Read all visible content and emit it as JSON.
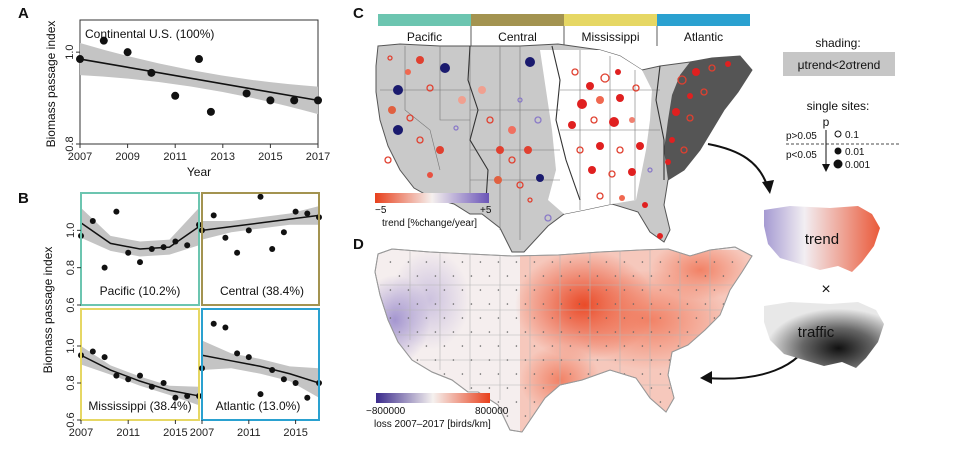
{
  "panels": {
    "a": "A",
    "b": "B",
    "c": "C",
    "d": "D"
  },
  "chart_data": [
    {
      "id": "A",
      "type": "scatter",
      "annotation": "Continental U.S. (100%)",
      "xlabel": "Year",
      "ylabel": "Biomass passage index",
      "x_ticks": [
        "2007",
        "2009",
        "2011",
        "2013",
        "2015",
        "2017"
      ],
      "y_ticks": [
        "0.8",
        "1.0"
      ],
      "xlim": [
        2007,
        2017
      ],
      "ylim": [
        0.8,
        1.07
      ],
      "x": [
        2007,
        2008,
        2009,
        2010,
        2011,
        2012,
        2012.5,
        2014,
        2015,
        2016,
        2017
      ],
      "y": [
        0.985,
        1.025,
        1.0,
        0.955,
        0.905,
        0.985,
        0.87,
        0.91,
        0.895,
        0.895,
        0.895
      ],
      "trend": [
        0.985,
        0.895
      ],
      "band": [
        0.035,
        0.015,
        0.03
      ]
    },
    {
      "id": "B",
      "type": "scatter",
      "ylabel": "Biomass passage index",
      "x_ticks": [
        "2007",
        "2011",
        "2015"
      ],
      "y_ticks": [
        "0.6",
        "0.8",
        "1.0"
      ],
      "xlim": [
        2007,
        2017
      ],
      "ylim": [
        0.6,
        1.2
      ],
      "series": [
        {
          "name": "Pacific (10.2%)",
          "color": "#6cc5b0",
          "x": [
            2007,
            2008,
            2009,
            2010,
            2011,
            2012,
            2013,
            2014,
            2015,
            2016,
            2017
          ],
          "y": [
            0.97,
            1.05,
            0.8,
            1.1,
            0.88,
            0.83,
            0.9,
            0.91,
            0.94,
            0.92,
            1.03
          ],
          "curve": [
            1.04,
            0.93,
            0.9,
            0.91,
            1.02
          ],
          "band": [
            0.08,
            0.04,
            0.1
          ]
        },
        {
          "name": "Central (38.4%)",
          "color": "#a39350",
          "x": [
            2007,
            2008,
            2009,
            2010,
            2011,
            2012,
            2013,
            2014,
            2015,
            2016,
            2017
          ],
          "y": [
            1.0,
            1.08,
            0.96,
            0.88,
            1.0,
            1.18,
            0.9,
            0.99,
            1.1,
            1.09,
            1.07
          ],
          "curve": [
            1.0,
            1.02,
            1.04,
            1.06,
            1.08
          ],
          "band": [
            0.05,
            0.03,
            0.05
          ]
        },
        {
          "name": "Mississippi (38.4%)",
          "color": "#e6d764",
          "x": [
            2007,
            2008,
            2009,
            2010,
            2011,
            2012,
            2013,
            2014,
            2015,
            2016,
            2017
          ],
          "y": [
            0.95,
            0.97,
            0.94,
            0.84,
            0.82,
            0.84,
            0.78,
            0.8,
            0.72,
            0.73,
            0.73
          ],
          "curve": [
            0.95,
            0.87,
            0.81,
            0.76,
            0.73
          ],
          "band": [
            0.05,
            0.025,
            0.05
          ]
        },
        {
          "name": "Atlantic (13.0%)",
          "color": "#2aa1d0",
          "x": [
            2007,
            2008,
            2009,
            2010,
            2011,
            2012,
            2013,
            2014,
            2015,
            2016,
            2017
          ],
          "y": [
            0.88,
            1.12,
            1.1,
            0.96,
            0.94,
            0.74,
            0.87,
            0.82,
            0.8,
            0.72,
            0.8
          ],
          "curve": [
            0.95,
            0.92,
            0.89,
            0.85,
            0.8
          ],
          "band": [
            0.08,
            0.04,
            0.08
          ]
        }
      ]
    },
    {
      "id": "C",
      "type": "map",
      "flyways": [
        {
          "name": "Pacific",
          "color": "#6cc5b0"
        },
        {
          "name": "Central",
          "color": "#a39350"
        },
        {
          "name": "Mississippi",
          "color": "#e6d764"
        },
        {
          "name": "Atlantic",
          "color": "#2aa1d0"
        }
      ],
      "colorbar": {
        "label": "trend [%change/year]",
        "min": "−5",
        "max": "+5"
      },
      "shading_legend": {
        "title": "shading:",
        "formula": "μtrend<2σtrend"
      },
      "sites_legend": {
        "title": "single sites:",
        "p_label": "p",
        "above": "p>0.05",
        "below": "p<0.05",
        "values": [
          "0.1",
          "0.01",
          "0.001"
        ]
      }
    },
    {
      "id": "D",
      "type": "heatmap",
      "colorbar": {
        "label": "loss 2007–2017 [birds/km]",
        "min": "−800000",
        "max": "800000"
      },
      "inset_labels": {
        "trend": "trend",
        "times": "×",
        "traffic": "traffic"
      }
    }
  ]
}
